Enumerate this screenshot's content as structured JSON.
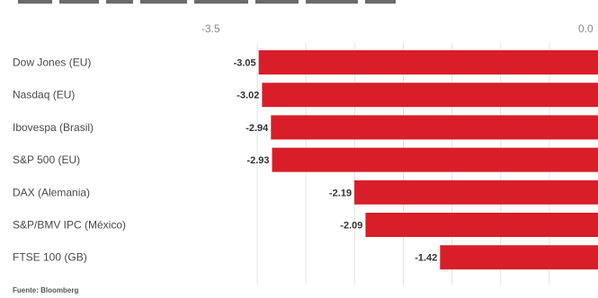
{
  "chart_data": {
    "type": "bar",
    "orientation": "horizontal",
    "title": "",
    "categories": [
      "Dow Jones (EU)",
      "Nasdaq (EU)",
      "Ibovespa (Brasil)",
      "S&P 500 (EU)",
      "DAX (Alemania)",
      "S&P/BMV IPC (México)",
      "FTSE 100 (GB)"
    ],
    "values": [
      -3.05,
      -3.02,
      -2.94,
      -2.93,
      -2.19,
      -2.09,
      -1.42
    ],
    "value_labels": [
      "-3.05",
      "-3.02",
      "-2.94",
      "-2.93",
      "-2.19",
      "-2.09",
      "-1.42"
    ],
    "xlim": [
      -3.5,
      0
    ],
    "x_tick_labels": [
      "-3.5",
      "0.0"
    ],
    "grid": true,
    "bar_color": "#d81e28",
    "source": "Fuente: Bloomberg"
  }
}
